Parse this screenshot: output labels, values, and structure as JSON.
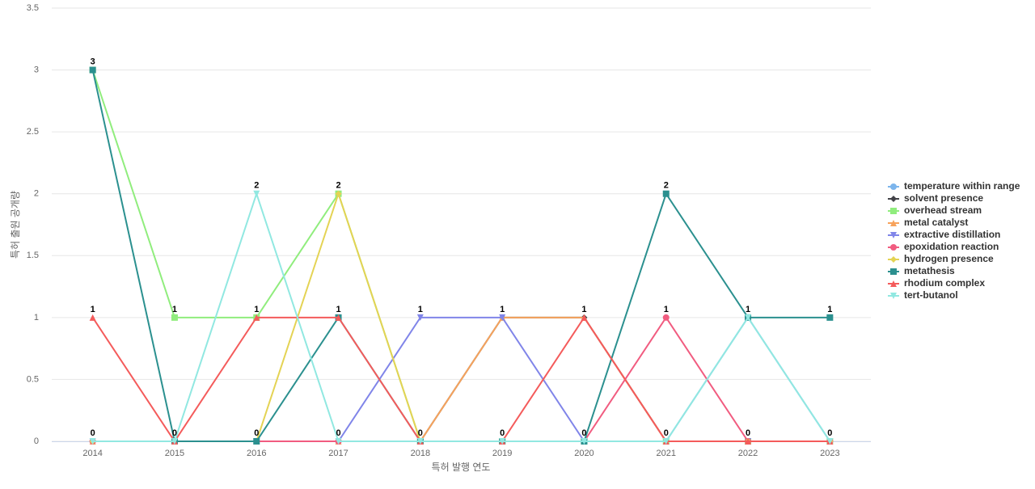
{
  "chart_data": {
    "type": "line",
    "x_label": "특허 발행 연도",
    "y_label": "특허 출원 공개량",
    "categories": [
      "2014",
      "2015",
      "2016",
      "2017",
      "2018",
      "2019",
      "2020",
      "2021",
      "2022",
      "2023"
    ],
    "ylim": [
      0,
      3.5
    ],
    "yticks": [
      0,
      0.5,
      1,
      1.5,
      2,
      2.5,
      3,
      3.5
    ],
    "grid": true,
    "legend": "right",
    "series": [
      {
        "name": "temperature within range",
        "color": "#7cb5ec",
        "marker": "circle",
        "values": [
          0,
          0,
          0,
          0,
          0,
          0,
          0,
          0,
          1,
          0
        ]
      },
      {
        "name": "solvent presence",
        "color": "#434348",
        "marker": "diamond",
        "values": [
          0,
          0,
          0,
          0,
          0,
          1,
          1,
          0,
          0,
          0
        ]
      },
      {
        "name": "overhead stream",
        "color": "#90ed7d",
        "marker": "square",
        "values": [
          3,
          1,
          1,
          2,
          0,
          0,
          0,
          0,
          0,
          0
        ]
      },
      {
        "name": "metal catalyst",
        "color": "#f7a35c",
        "marker": "triangle",
        "values": [
          0,
          0,
          0,
          0,
          0,
          1,
          1,
          0,
          0,
          0
        ]
      },
      {
        "name": "extractive distillation",
        "color": "#8085e9",
        "marker": "triangle-down",
        "values": [
          0,
          0,
          0,
          0,
          1,
          1,
          0,
          0,
          0,
          0
        ]
      },
      {
        "name": "epoxidation reaction",
        "color": "#f15c80",
        "marker": "circle",
        "values": [
          0,
          0,
          0,
          0,
          0,
          0,
          0,
          1,
          0,
          0
        ]
      },
      {
        "name": "hydrogen presence",
        "color": "#e4d354",
        "marker": "diamond",
        "values": [
          0,
          0,
          0,
          2,
          0,
          0,
          0,
          0,
          0,
          0
        ]
      },
      {
        "name": "metathesis",
        "color": "#2b908f",
        "marker": "square",
        "values": [
          3,
          0,
          0,
          1,
          0,
          0,
          0,
          2,
          1,
          1
        ]
      },
      {
        "name": "rhodium complex",
        "color": "#f45b5b",
        "marker": "triangle",
        "values": [
          1,
          0,
          1,
          1,
          0,
          0,
          1,
          0,
          0,
          0
        ]
      },
      {
        "name": "tert-butanol",
        "color": "#91e8e1",
        "marker": "triangle-down",
        "values": [
          0,
          0,
          2,
          0,
          0,
          0,
          0,
          0,
          1,
          0
        ]
      }
    ]
  }
}
